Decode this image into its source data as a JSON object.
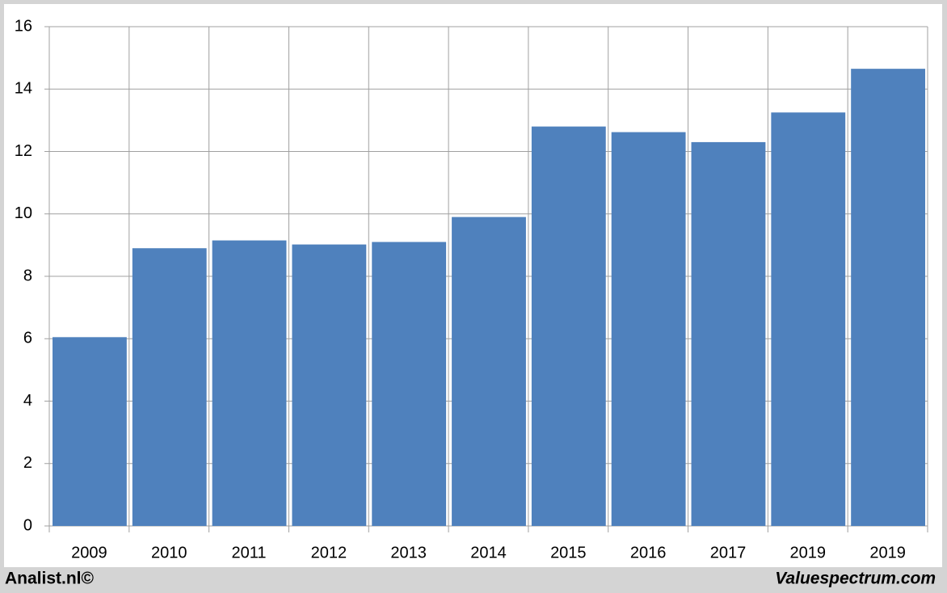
{
  "chart_data": {
    "type": "bar",
    "categories": [
      "2009",
      "2010",
      "2011",
      "2012",
      "2013",
      "2014",
      "2015",
      "2016",
      "2017",
      "2019",
      "2019"
    ],
    "values": [
      6.05,
      8.9,
      9.15,
      9.02,
      9.1,
      9.9,
      12.8,
      12.62,
      12.3,
      13.25,
      14.65
    ],
    "color": "#4f81bd",
    "ylim": [
      0,
      16
    ],
    "yticks": [
      0,
      2,
      4,
      6,
      8,
      10,
      12,
      14,
      16
    ],
    "grid": true,
    "footer_left": "Analist.nl©",
    "footer_right": "Valuespectrum.com"
  }
}
